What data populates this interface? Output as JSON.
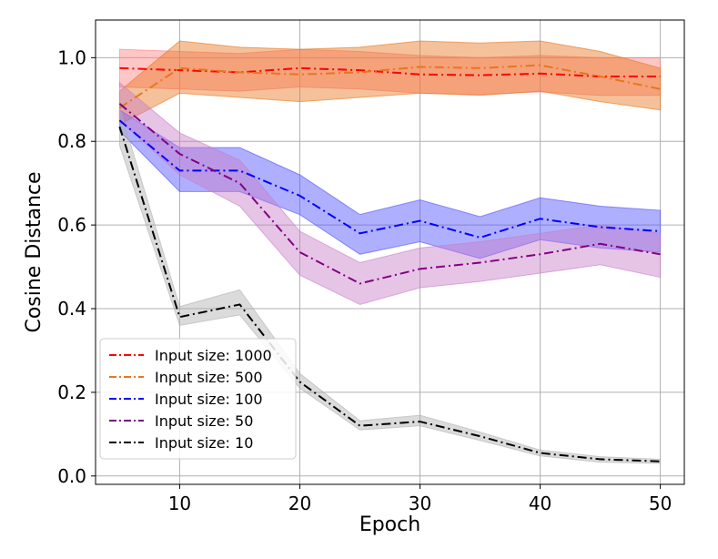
{
  "chart_data": {
    "type": "line",
    "title": "",
    "xlabel": "Epoch",
    "ylabel": "Cosine Distance",
    "xlim": [
      3,
      52
    ],
    "ylim": [
      -0.02,
      1.09
    ],
    "xticks": [
      10,
      20,
      30,
      40,
      50
    ],
    "yticks": [
      0.0,
      0.2,
      0.4,
      0.6,
      0.8,
      1.0
    ],
    "xtick_labels": [
      "10",
      "20",
      "30",
      "40",
      "50"
    ],
    "ytick_labels": [
      "0.0",
      "0.2",
      "0.4",
      "0.6",
      "0.8",
      "1.0"
    ],
    "grid": true,
    "legend_position": "lower-left",
    "x": [
      5,
      10,
      15,
      20,
      25,
      30,
      35,
      40,
      45,
      50
    ],
    "series": [
      {
        "name": "Input size: 1000",
        "color": "#ff0000",
        "band_color": "#ff8080",
        "values": [
          0.975,
          0.97,
          0.965,
          0.975,
          0.97,
          0.96,
          0.958,
          0.962,
          0.955,
          0.955
        ],
        "lower": [
          0.93,
          0.925,
          0.92,
          0.93,
          0.925,
          0.915,
          0.912,
          0.918,
          0.91,
          0.91
        ],
        "upper": [
          1.02,
          1.015,
          1.01,
          1.02,
          1.015,
          1.005,
          1.0,
          1.005,
          1.0,
          1.0
        ]
      },
      {
        "name": "Input size: 500",
        "color": "#e8761e",
        "band_color": "#e8761e",
        "values": [
          0.88,
          0.975,
          0.965,
          0.96,
          0.965,
          0.978,
          0.975,
          0.982,
          0.955,
          0.925
        ],
        "lower": [
          0.84,
          0.915,
          0.905,
          0.895,
          0.905,
          0.915,
          0.91,
          0.92,
          0.895,
          0.875
        ],
        "upper": [
          0.92,
          1.04,
          1.025,
          1.02,
          1.025,
          1.04,
          1.035,
          1.04,
          1.015,
          0.975
        ]
      },
      {
        "name": "Input size: 100",
        "color": "#0000ff",
        "band_color": "#4d4dff",
        "values": [
          0.85,
          0.73,
          0.73,
          0.67,
          0.58,
          0.61,
          0.57,
          0.615,
          0.595,
          0.585
        ],
        "lower": [
          0.825,
          0.68,
          0.68,
          0.625,
          0.53,
          0.56,
          0.52,
          0.565,
          0.545,
          0.535
        ],
        "upper": [
          0.875,
          0.785,
          0.785,
          0.72,
          0.625,
          0.66,
          0.62,
          0.665,
          0.645,
          0.635
        ]
      },
      {
        "name": "Input size: 50",
        "color": "#800080",
        "band_color": "#c77dc7",
        "values": [
          0.89,
          0.77,
          0.7,
          0.535,
          0.46,
          0.495,
          0.51,
          0.53,
          0.555,
          0.53
        ],
        "lower": [
          0.85,
          0.72,
          0.645,
          0.48,
          0.41,
          0.45,
          0.465,
          0.485,
          0.505,
          0.475
        ],
        "upper": [
          0.94,
          0.82,
          0.755,
          0.585,
          0.51,
          0.545,
          0.56,
          0.58,
          0.6,
          0.58
        ]
      },
      {
        "name": "Input size: 10",
        "color": "#000000",
        "band_color": "#b0b0b0",
        "values": [
          0.835,
          0.38,
          0.41,
          0.225,
          0.12,
          0.13,
          0.095,
          0.055,
          0.04,
          0.035
        ],
        "lower": [
          0.79,
          0.36,
          0.385,
          0.21,
          0.11,
          0.12,
          0.085,
          0.048,
          0.033,
          0.03
        ],
        "upper": [
          0.88,
          0.405,
          0.445,
          0.245,
          0.132,
          0.145,
          0.105,
          0.062,
          0.046,
          0.04
        ]
      }
    ]
  }
}
